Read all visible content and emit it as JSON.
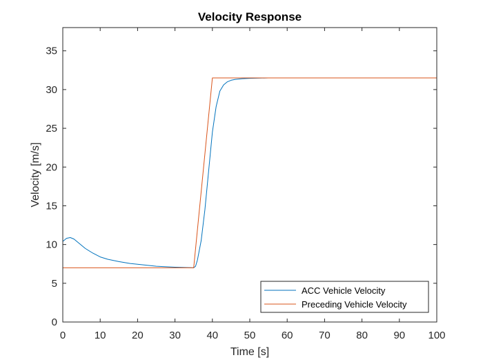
{
  "chart_data": {
    "type": "line",
    "title": "Velocity Response",
    "xlabel": "Time [s]",
    "ylabel": "Velocity [m/s]",
    "xlim": [
      0,
      100
    ],
    "ylim": [
      0,
      38
    ],
    "xticks": [
      0,
      10,
      20,
      30,
      40,
      50,
      60,
      70,
      80,
      90,
      100
    ],
    "yticks": [
      0,
      5,
      10,
      15,
      20,
      25,
      30,
      35
    ],
    "grid": false,
    "legend_position": "bottom-right",
    "series": [
      {
        "name": "ACC Vehicle Velocity",
        "color": "#0072BD",
        "x": [
          0,
          1,
          2,
          3,
          4,
          5,
          6,
          8,
          10,
          12,
          15,
          18,
          20,
          25,
          30,
          34,
          35,
          35.5,
          36,
          37,
          38,
          39,
          40,
          41,
          42,
          43,
          44,
          45,
          46,
          48,
          50,
          55,
          60,
          70,
          80,
          90,
          100
        ],
        "y": [
          10.4,
          10.8,
          10.9,
          10.7,
          10.3,
          9.9,
          9.5,
          8.9,
          8.4,
          8.1,
          7.8,
          7.55,
          7.45,
          7.2,
          7.08,
          7.02,
          7.0,
          7.2,
          8.0,
          10.5,
          14.5,
          19.5,
          24.5,
          27.8,
          29.8,
          30.6,
          31.0,
          31.2,
          31.3,
          31.4,
          31.45,
          31.5,
          31.5,
          31.5,
          31.5,
          31.5,
          31.5
        ]
      },
      {
        "name": "Preceding Vehicle Velocity",
        "color": "#D95319",
        "x": [
          0,
          35,
          40,
          100
        ],
        "y": [
          7.0,
          7.0,
          31.5,
          31.5
        ]
      }
    ]
  }
}
